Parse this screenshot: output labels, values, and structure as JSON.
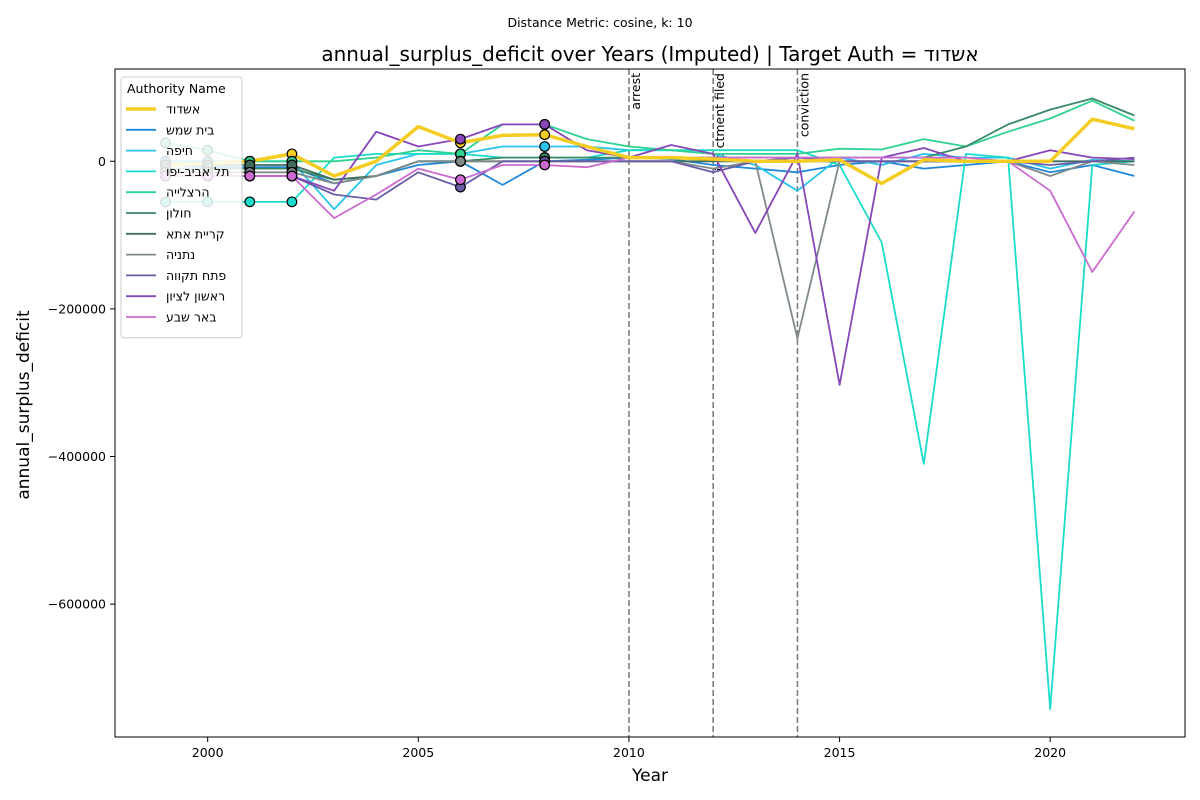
{
  "chart_data": {
    "type": "line",
    "suptitle": "Distance Metric: cosine, k: 10",
    "title": "annual_surplus_deficit over Years (Imputed) | Target Auth = אשדוד",
    "xlabel": "Year",
    "ylabel": "annual_surplus_deficit",
    "xlim": [
      1997.8,
      2023.2
    ],
    "ylim": [
      -780000,
      125000
    ],
    "xticks": [
      2000,
      2005,
      2010,
      2015,
      2020
    ],
    "yticks": [
      -600000,
      -400000,
      -200000,
      0
    ],
    "ytick_labels": [
      "−600000",
      "−400000",
      "−200000",
      "0"
    ],
    "grid": false,
    "legend": {
      "title": "Authority Name",
      "placement": "top-left"
    },
    "events": [
      {
        "x": 2010,
        "label": "arrest"
      },
      {
        "x": 2012,
        "label": "indictment filed"
      },
      {
        "x": 2014,
        "label": "conviction"
      }
    ],
    "x": [
      1999,
      2000,
      2001,
      2002,
      2003,
      2004,
      2005,
      2006,
      2007,
      2008,
      2009,
      2010,
      2011,
      2012,
      2013,
      2014,
      2015,
      2016,
      2017,
      2018,
      2019,
      2020,
      2021,
      2022
    ],
    "series": [
      {
        "name": "אשדוד",
        "color": "#f4cc22",
        "width": 3.5,
        "target": true,
        "values": [
          -5000,
          -3000,
          0,
          10000,
          -20000,
          0,
          47000,
          25000,
          35000,
          36000,
          20000,
          5000,
          5000,
          3000,
          0,
          0,
          2000,
          -30000,
          2000,
          0,
          0,
          0,
          57000,
          44000
        ],
        "imputed": [
          1999,
          2000,
          2001,
          2002,
          2006,
          2008
        ]
      },
      {
        "name": "בית שמש",
        "color": "#1f88d8",
        "width": 1.8,
        "values": [
          -5000,
          -8000,
          -8000,
          -8000,
          -30000,
          -20000,
          -5000,
          0,
          -32000,
          0,
          2000,
          5000,
          3000,
          -5000,
          -10000,
          -15000,
          -5000,
          0,
          -10000,
          -5000,
          0,
          -15000,
          -5000,
          -20000
        ],
        "imputed": [
          1999,
          2000,
          2001,
          2002,
          2006,
          2008
        ]
      },
      {
        "name": "חיפה",
        "color": "#29c4ee",
        "width": 1.8,
        "values": [
          0,
          0,
          0,
          0,
          -65000,
          -5000,
          10000,
          10000,
          20000,
          20000,
          20000,
          15000,
          15000,
          10000,
          -5000,
          -40000,
          5000,
          -5000,
          10000,
          5000,
          5000,
          -10000,
          2000,
          0
        ],
        "imputed": [
          1999,
          2000,
          2001,
          2002,
          2006,
          2008
        ]
      },
      {
        "name": "תל אביב-יפו",
        "color": "#19dccb",
        "width": 1.8,
        "values": [
          -55000,
          -55000,
          -55000,
          -55000,
          5000,
          10000,
          10000,
          10000,
          5000,
          5000,
          5000,
          15000,
          15000,
          15000,
          15000,
          15000,
          -5000,
          -110000,
          -410000,
          10000,
          5000,
          -742000,
          -5000,
          0
        ],
        "imputed": [
          1999,
          2000,
          2001,
          2002,
          2006,
          2008
        ]
      },
      {
        "name": "הרצלייה",
        "color": "#2fd290",
        "width": 1.8,
        "values": [
          25000,
          15000,
          0,
          0,
          0,
          5000,
          15000,
          10000,
          50000,
          50000,
          30000,
          20000,
          15000,
          10000,
          10000,
          10000,
          17000,
          16000,
          30000,
          20000,
          40000,
          58000,
          82000,
          55000
        ],
        "imputed": [
          1999,
          2000,
          2001,
          2002,
          2006,
          2008
        ]
      },
      {
        "name": "חולון",
        "color": "#3a8a66",
        "width": 1.8,
        "values": [
          -10000,
          -10000,
          -10000,
          -10000,
          -25000,
          -20000,
          0,
          0,
          5000,
          5000,
          5000,
          5000,
          5000,
          5000,
          5000,
          5000,
          5000,
          5000,
          5000,
          20000,
          50000,
          70000,
          85000,
          62000
        ],
        "imputed": [
          1999,
          2000,
          2001,
          2002,
          2006,
          2008
        ]
      },
      {
        "name": "קריית אתא",
        "color": "#3f6e5e",
        "width": 1.8,
        "values": [
          -5000,
          -5000,
          -5000,
          -5000,
          -25000,
          -20000,
          0,
          0,
          0,
          0,
          0,
          0,
          0,
          0,
          0,
          0,
          0,
          0,
          0,
          0,
          0,
          0,
          0,
          0
        ],
        "imputed": [
          1999,
          2000,
          2001,
          2002,
          2006,
          2008
        ]
      },
      {
        "name": "נתניה",
        "color": "#808a8a",
        "width": 1.8,
        "values": [
          -15000,
          -15000,
          -15000,
          -15000,
          -30000,
          -20000,
          0,
          0,
          0,
          0,
          0,
          0,
          0,
          -10000,
          0,
          -240000,
          0,
          0,
          0,
          0,
          0,
          -20000,
          0,
          -5000
        ],
        "imputed": [
          1999,
          2000,
          2001,
          2002,
          2006,
          2008
        ]
      },
      {
        "name": "פתח תקווה",
        "color": "#6a5ea8",
        "width": 1.8,
        "values": [
          -20000,
          -20000,
          -20000,
          -20000,
          -45000,
          -52000,
          -15000,
          -35000,
          0,
          0,
          0,
          0,
          0,
          -15000,
          0,
          5000,
          0,
          0,
          0,
          0,
          0,
          -5000,
          0,
          5000
        ],
        "imputed": [
          1999,
          2000,
          2001,
          2002,
          2006,
          2008
        ]
      },
      {
        "name": "ראשון לציון",
        "color": "#8847b8",
        "width": 1.8,
        "values": [
          -20000,
          -20000,
          -20000,
          -20000,
          -40000,
          40000,
          20000,
          30000,
          50000,
          50000,
          15000,
          5000,
          22000,
          10000,
          -97000,
          10000,
          -303000,
          5000,
          18000,
          0,
          0,
          15000,
          5000,
          3000
        ],
        "imputed": [
          1999,
          2000,
          2001,
          2002,
          2006,
          2008
        ]
      },
      {
        "name": "באר שבע",
        "color": "#cc6ad0",
        "width": 1.8,
        "values": [
          -20000,
          -20000,
          -20000,
          -20000,
          -77000,
          -45000,
          -10000,
          -25000,
          -5000,
          -5000,
          -8000,
          5000,
          5000,
          5000,
          5000,
          5000,
          5000,
          5000,
          5000,
          5000,
          0,
          -40000,
          -150000,
          -68000
        ],
        "imputed": [
          1999,
          2000,
          2001,
          2002,
          2006,
          2008
        ]
      }
    ]
  }
}
